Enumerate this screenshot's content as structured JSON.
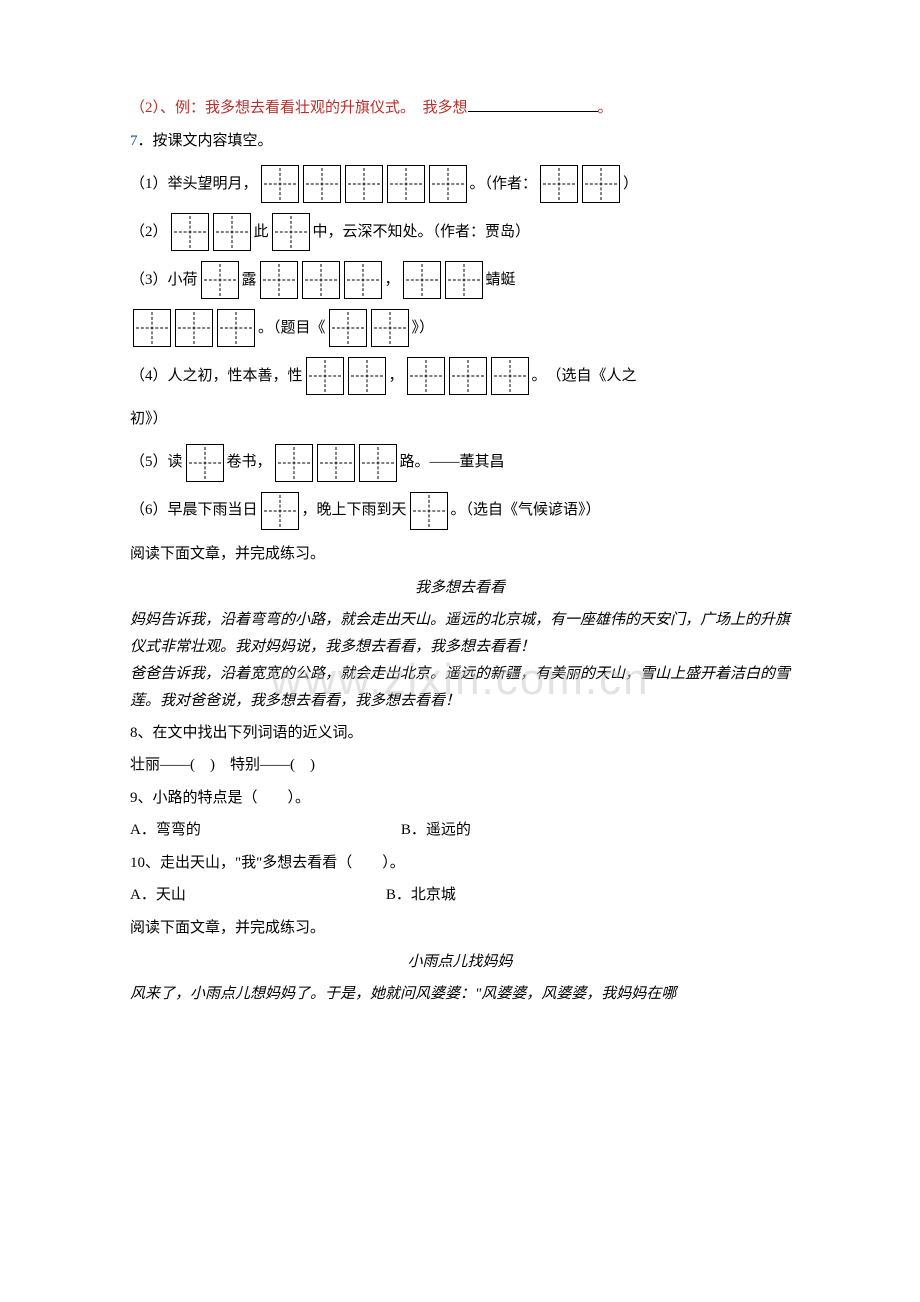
{
  "watermark_text": "www.zixin.com.cn",
  "q_example": {
    "prefix": "（2）、例：我多想去看看壮观的升旗仪式。　我多想",
    "suffix": "。"
  },
  "q7": {
    "number": "7",
    "title": "．按课文内容填空。",
    "items": [
      {
        "segments": [
          {
            "type": "text",
            "value": "（1）举头望明月，"
          },
          {
            "type": "boxes",
            "count": 5
          },
          {
            "type": "text",
            "value": "。（作者："
          },
          {
            "type": "boxes",
            "count": 2
          },
          {
            "type": "text",
            "value": "）"
          }
        ]
      },
      {
        "segments": [
          {
            "type": "text",
            "value": "（2）"
          },
          {
            "type": "boxes",
            "count": 2
          },
          {
            "type": "text",
            "value": "此"
          },
          {
            "type": "boxes",
            "count": 1
          },
          {
            "type": "text",
            "value": "中，云深不知处。（作者：贾岛）"
          }
        ]
      },
      {
        "segments": [
          {
            "type": "text",
            "value": "（3）小荷"
          },
          {
            "type": "boxes",
            "count": 1
          },
          {
            "type": "text",
            "value": "露"
          },
          {
            "type": "boxes",
            "count": 3
          },
          {
            "type": "text",
            "value": "，"
          },
          {
            "type": "boxes",
            "count": 2
          },
          {
            "type": "text",
            "value": "蜻蜓"
          }
        ]
      },
      {
        "segments": [
          {
            "type": "boxes",
            "count": 3
          },
          {
            "type": "text",
            "value": "。（题目《"
          },
          {
            "type": "boxes",
            "count": 2
          },
          {
            "type": "text",
            "value": "》）"
          }
        ]
      },
      {
        "segments": [
          {
            "type": "text",
            "value": "（4）人之初，性本善，性"
          },
          {
            "type": "boxes",
            "count": 2
          },
          {
            "type": "text",
            "value": "，"
          },
          {
            "type": "boxes",
            "count": 3
          },
          {
            "type": "text",
            "value": "。　（选自《人之"
          }
        ]
      },
      {
        "segments": [
          {
            "type": "text",
            "value": "初》）"
          }
        ]
      },
      {
        "segments": [
          {
            "type": "text",
            "value": "（5）读"
          },
          {
            "type": "boxes",
            "count": 1
          },
          {
            "type": "text",
            "value": "卷书，"
          },
          {
            "type": "boxes",
            "count": 3
          },
          {
            "type": "text",
            "value": "路。——董其昌"
          }
        ]
      },
      {
        "segments": [
          {
            "type": "text",
            "value": "（6）早晨下雨当日"
          },
          {
            "type": "boxes",
            "count": 1
          },
          {
            "type": "text",
            "value": "，晚上下雨到天"
          },
          {
            "type": "boxes",
            "count": 1
          },
          {
            "type": "text",
            "value": "。（选自《气候谚语》）"
          }
        ]
      }
    ]
  },
  "read_instr": "阅读下面文章，并完成练习。",
  "passage1": {
    "title": "我多想去看看",
    "text": "妈妈告诉我，沿着弯弯的小路，就会走出天山。遥远的北京城，有一座雄伟的天安门，广场上的升旗仪式非常壮观。我对妈妈说，我多想去看看，我多想去看看！\n爸爸告诉我，沿着宽宽的公路，就会走出北京。遥远的新疆，有美丽的天山，雪山上盛开着洁白的雪莲。我对爸爸说，我多想去看看，我多想去看看！"
  },
  "q8": "8、在文中找出下列词语的近义词。",
  "q8_line": "壮丽——(　)　特别——(　)",
  "q9": {
    "stem": "9、小路的特点是（　　）。",
    "optA": "A．弯弯的",
    "optB": "B．遥远的"
  },
  "q10": {
    "stem": "10、走出天山，\"我\"多想去看看（　　）。",
    "optA": "A．天山",
    "optB": "B．北京城"
  },
  "passage2": {
    "title": "小雨点儿找妈妈",
    "text": "风来了，小雨点儿想妈妈了。于是，她就问风婆婆：\"风婆婆，风婆婆，我妈妈在哪"
  }
}
